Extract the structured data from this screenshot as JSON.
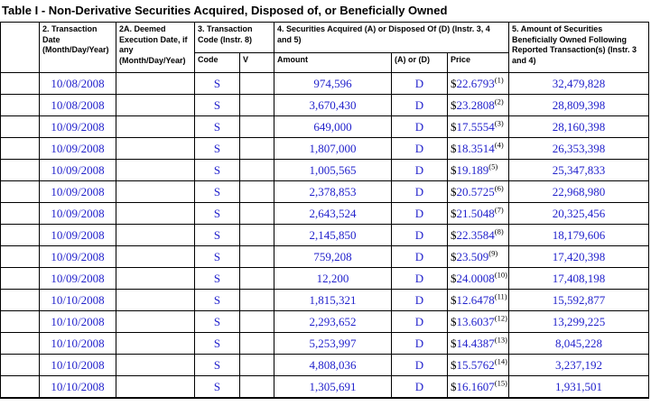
{
  "title": "Table I - Non-Derivative Securities Acquired, Disposed of, or Beneficially Owned",
  "colors": {
    "link_blue": "#2222CC",
    "border": "#000000",
    "text": "#000000"
  },
  "table": {
    "header": {
      "transaction_date": "2. Transaction Date (Month/Day/Year)",
      "deemed_execution_date": "2A. Deemed Execution Date, if any (Month/Day/Year)",
      "transaction_code": "3. Transaction Code (Instr. 8)",
      "securities_acquired_disposed": "4. Securities Acquired (A) or Disposed Of (D) (Instr. 3, 4 and 5)",
      "amount_owned": "5. Amount of Securities Beneficially Owned Following Reported Transaction(s) (Instr. 3 and 4)",
      "sub": {
        "code": "Code",
        "v": "V",
        "amount": "Amount",
        "a_or_d": "(A) or (D)",
        "price": "Price"
      }
    },
    "rows": [
      {
        "date": "10/08/2008",
        "deemed_execution_date": "",
        "code": "S",
        "v": "",
        "amount": "974,596",
        "a_or_d": "D",
        "price": {
          "currency": "$",
          "value": "22.6793",
          "footnote": "(1)"
        },
        "owned": "32,479,828"
      },
      {
        "date": "10/08/2008",
        "deemed_execution_date": "",
        "code": "S",
        "v": "",
        "amount": "3,670,430",
        "a_or_d": "D",
        "price": {
          "currency": "$",
          "value": "23.2808",
          "footnote": "(2)"
        },
        "owned": "28,809,398"
      },
      {
        "date": "10/09/2008",
        "deemed_execution_date": "",
        "code": "S",
        "v": "",
        "amount": "649,000",
        "a_or_d": "D",
        "price": {
          "currency": "$",
          "value": "17.5554",
          "footnote": "(3)"
        },
        "owned": "28,160,398"
      },
      {
        "date": "10/09/2008",
        "deemed_execution_date": "",
        "code": "S",
        "v": "",
        "amount": "1,807,000",
        "a_or_d": "D",
        "price": {
          "currency": "$",
          "value": "18.3514",
          "footnote": "(4)"
        },
        "owned": "26,353,398"
      },
      {
        "date": "10/09/2008",
        "deemed_execution_date": "",
        "code": "S",
        "v": "",
        "amount": "1,005,565",
        "a_or_d": "D",
        "price": {
          "currency": "$",
          "value": "19.189",
          "footnote": "(5)"
        },
        "owned": "25,347,833"
      },
      {
        "date": "10/09/2008",
        "deemed_execution_date": "",
        "code": "S",
        "v": "",
        "amount": "2,378,853",
        "a_or_d": "D",
        "price": {
          "currency": "$",
          "value": "20.5725",
          "footnote": "(6)"
        },
        "owned": "22,968,980"
      },
      {
        "date": "10/09/2008",
        "deemed_execution_date": "",
        "code": "S",
        "v": "",
        "amount": "2,643,524",
        "a_or_d": "D",
        "price": {
          "currency": "$",
          "value": "21.5048",
          "footnote": "(7)"
        },
        "owned": "20,325,456"
      },
      {
        "date": "10/09/2008",
        "deemed_execution_date": "",
        "code": "S",
        "v": "",
        "amount": "2,145,850",
        "a_or_d": "D",
        "price": {
          "currency": "$",
          "value": "22.3584",
          "footnote": "(8)"
        },
        "owned": "18,179,606"
      },
      {
        "date": "10/09/2008",
        "deemed_execution_date": "",
        "code": "S",
        "v": "",
        "amount": "759,208",
        "a_or_d": "D",
        "price": {
          "currency": "$",
          "value": "23.509",
          "footnote": "(9)"
        },
        "owned": "17,420,398"
      },
      {
        "date": "10/09/2008",
        "deemed_execution_date": "",
        "code": "S",
        "v": "",
        "amount": "12,200",
        "a_or_d": "D",
        "price": {
          "currency": "$",
          "value": "24.0008",
          "footnote": "(10)"
        },
        "owned": "17,408,198"
      },
      {
        "date": "10/10/2008",
        "deemed_execution_date": "",
        "code": "S",
        "v": "",
        "amount": "1,815,321",
        "a_or_d": "D",
        "price": {
          "currency": "$",
          "value": "12.6478",
          "footnote": "(11)"
        },
        "owned": "15,592,877"
      },
      {
        "date": "10/10/2008",
        "deemed_execution_date": "",
        "code": "S",
        "v": "",
        "amount": "2,293,652",
        "a_or_d": "D",
        "price": {
          "currency": "$",
          "value": "13.6037",
          "footnote": "(12)"
        },
        "owned": "13,299,225"
      },
      {
        "date": "10/10/2008",
        "deemed_execution_date": "",
        "code": "S",
        "v": "",
        "amount": "5,253,997",
        "a_or_d": "D",
        "price": {
          "currency": "$",
          "value": "14.4387",
          "footnote": "(13)"
        },
        "owned": "8,045,228"
      },
      {
        "date": "10/10/2008",
        "deemed_execution_date": "",
        "code": "S",
        "v": "",
        "amount": "4,808,036",
        "a_or_d": "D",
        "price": {
          "currency": "$",
          "value": "15.5762",
          "footnote": "(14)"
        },
        "owned": "3,237,192"
      },
      {
        "date": "10/10/2008",
        "deemed_execution_date": "",
        "code": "S",
        "v": "",
        "amount": "1,305,691",
        "a_or_d": "D",
        "price": {
          "currency": "$",
          "value": "16.1607",
          "footnote": "(15)"
        },
        "owned": "1,931,501"
      }
    ]
  }
}
